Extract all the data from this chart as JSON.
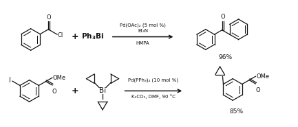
{
  "rxn1": {
    "reagent_above": "Pd(OAc)₂ (5 mol %)",
    "reagent_mid": "Et₃N",
    "reagent_below": "HMPA",
    "yield": "96%"
  },
  "rxn2": {
    "reagent_above": "Pd(PPh₃)₄ (10 mol %)",
    "reagent_below": "K₂CO₃, DMF, 90 °C",
    "yield": "85%"
  },
  "text_color": "#111111",
  "fig_width": 4.33,
  "fig_height": 1.85,
  "dpi": 100
}
